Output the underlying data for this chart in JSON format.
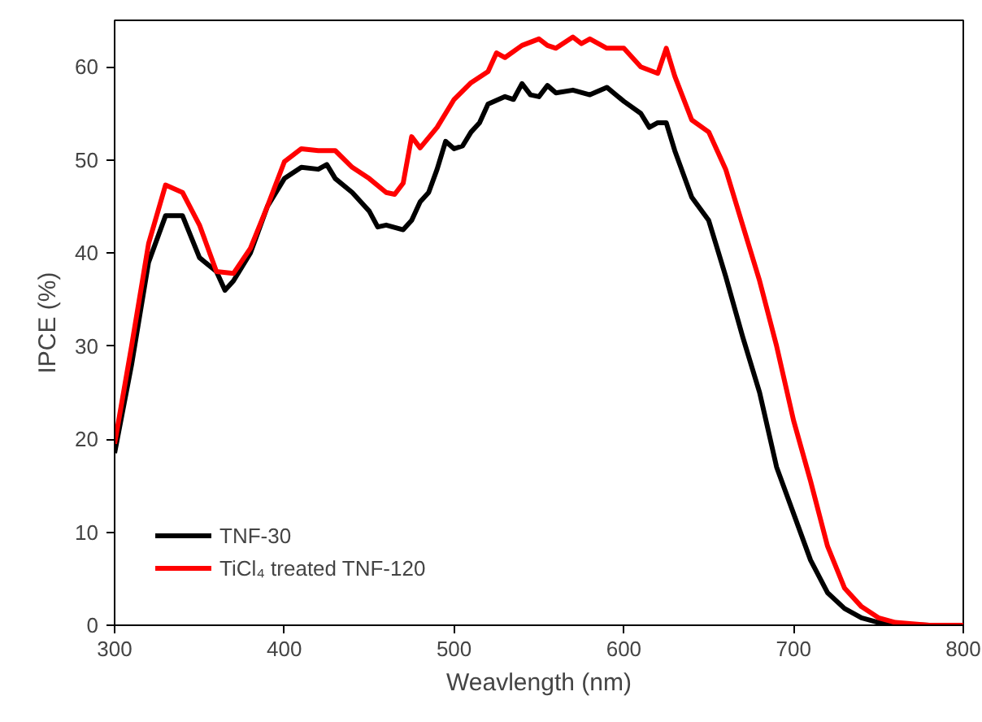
{
  "chart_data": {
    "type": "line",
    "xlabel": "Weavlength (nm)",
    "ylabel": "IPCE (%)",
    "xlim": [
      300,
      800
    ],
    "ylim": [
      0,
      65
    ],
    "xticks": [
      300,
      400,
      500,
      600,
      700,
      800
    ],
    "yticks": [
      0,
      10,
      20,
      30,
      40,
      50,
      60
    ],
    "grid": false,
    "legend": "bottom left",
    "line_style": "solid",
    "marker": "none",
    "series": [
      {
        "name": "TNF-30",
        "color": "#000000",
        "x": [
          300,
          310,
          320,
          330,
          340,
          350,
          360,
          365,
          370,
          380,
          390,
          400,
          410,
          420,
          425,
          430,
          440,
          450,
          455,
          460,
          470,
          475,
          480,
          485,
          490,
          495,
          500,
          505,
          510,
          515,
          520,
          530,
          535,
          540,
          545,
          550,
          555,
          560,
          570,
          580,
          590,
          600,
          610,
          615,
          620,
          625,
          630,
          640,
          650,
          655,
          660,
          670,
          680,
          690,
          700,
          710,
          720,
          730,
          740,
          750,
          760,
          780,
          800
        ],
        "values": [
          18.5,
          28,
          39,
          44,
          44,
          39.5,
          38,
          36,
          37,
          40,
          45,
          48,
          49.2,
          49,
          49.5,
          48,
          46.5,
          44.5,
          42.8,
          43,
          42.5,
          43.5,
          45.5,
          46.5,
          49,
          52,
          51.2,
          51.5,
          53,
          54,
          56,
          56.8,
          56.5,
          58.2,
          57,
          56.8,
          58,
          57.2,
          57.5,
          57,
          57.8,
          56.3,
          55,
          53.5,
          54,
          54,
          51,
          46,
          43.5,
          40.5,
          37.5,
          31,
          25,
          17,
          12,
          7,
          3.5,
          1.8,
          0.8,
          0.3,
          0.1,
          0,
          0
        ]
      },
      {
        "name": "TiCl₄ treated TNF-120",
        "color": "#ff0000",
        "x": [
          300,
          310,
          320,
          330,
          340,
          350,
          360,
          370,
          380,
          390,
          400,
          410,
          420,
          430,
          440,
          450,
          460,
          465,
          470,
          475,
          480,
          490,
          500,
          510,
          520,
          525,
          530,
          540,
          550,
          555,
          560,
          570,
          575,
          580,
          590,
          600,
          610,
          620,
          625,
          630,
          640,
          650,
          660,
          670,
          680,
          690,
          700,
          710,
          720,
          730,
          740,
          750,
          760,
          780,
          800
        ],
        "values": [
          19.5,
          30,
          41,
          47.3,
          46.5,
          43,
          38,
          37.8,
          40.5,
          45,
          49.8,
          51.2,
          51,
          51,
          49.2,
          48,
          46.5,
          46.3,
          47.5,
          52.5,
          51.3,
          53.5,
          56.5,
          58.3,
          59.5,
          61.5,
          61,
          62.3,
          63,
          62.3,
          62,
          63.2,
          62.5,
          63,
          62,
          62,
          60,
          59.3,
          62,
          59,
          54.3,
          53,
          49,
          43,
          37,
          30,
          22,
          15.5,
          8.5,
          4,
          2,
          0.8,
          0.3,
          0,
          0
        ]
      }
    ]
  }
}
